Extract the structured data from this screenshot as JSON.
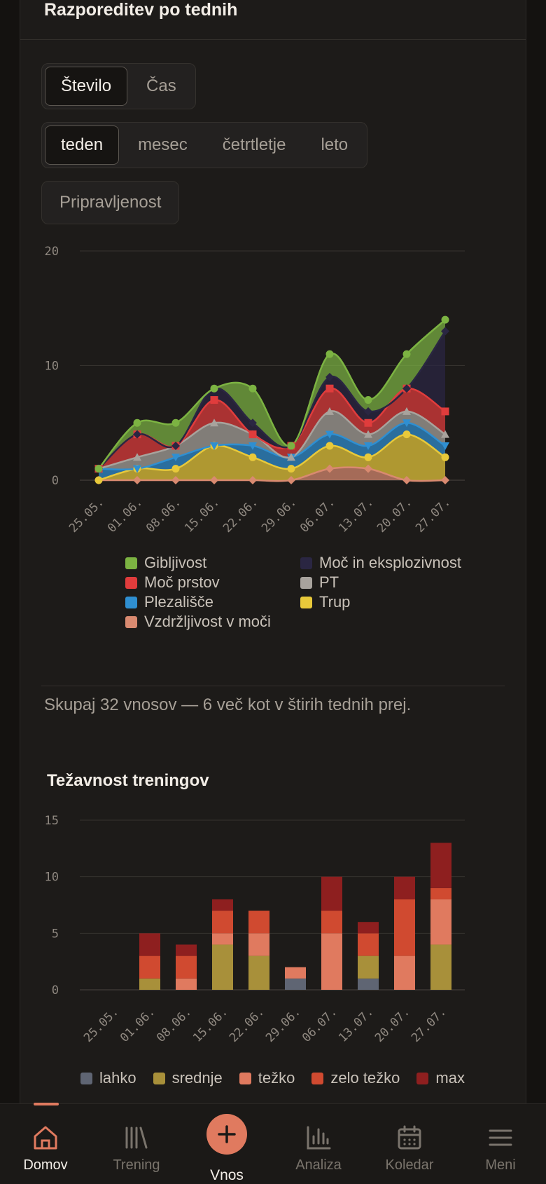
{
  "section": {
    "title": "Razporeditev po tednih",
    "metric_toggle": {
      "options": [
        "Število",
        "Čas"
      ],
      "selected": "Število"
    },
    "period_toggle": {
      "options": [
        "teden",
        "mesec",
        "četrtletje",
        "leto"
      ],
      "selected": "teden"
    },
    "readiness_button": "Pripravljenost",
    "summary": "Skupaj 32 vnosov — 6 več kot v štirih tednih prej."
  },
  "chart_data": [
    {
      "type": "area",
      "stacked": true,
      "title": "",
      "x": [
        "25.05.",
        "01.06.",
        "08.06.",
        "15.06.",
        "22.06.",
        "29.06.",
        "06.07.",
        "13.07.",
        "20.07.",
        "27.07."
      ],
      "y_ticks": [
        "0",
        "10",
        "20"
      ],
      "ylim": [
        0,
        20
      ],
      "grid": true,
      "legend_position": "bottom",
      "series": [
        {
          "name": "Vzdržljivost v moči",
          "color": "#d98a70",
          "values": [
            0,
            0,
            0,
            0,
            0,
            0,
            1,
            1,
            0,
            0
          ]
        },
        {
          "name": "Trup",
          "color": "#e8c93a",
          "values": [
            0,
            1,
            1,
            3,
            2,
            1,
            2,
            1,
            4,
            2
          ]
        },
        {
          "name": "Plezališče",
          "color": "#2f8fd1",
          "values": [
            1,
            0,
            1,
            0,
            1,
            1,
            1,
            1,
            1,
            1
          ]
        },
        {
          "name": "PT",
          "color": "#a8a39d",
          "values": [
            0,
            1,
            1,
            2,
            1,
            0,
            2,
            1,
            1,
            1
          ]
        },
        {
          "name": "Moč prstov",
          "color": "#e03c3c",
          "values": [
            0,
            2,
            0,
            2,
            0,
            1,
            2,
            1,
            2,
            2
          ]
        },
        {
          "name": "Moč in eksplozivnost",
          "color": "#2a2642",
          "values": [
            0,
            0,
            0,
            1,
            1,
            0,
            1,
            1,
            0,
            7
          ]
        },
        {
          "name": "Gibljivost",
          "color": "#7cb342",
          "values": [
            0,
            1,
            2,
            0,
            3,
            0,
            2,
            1,
            3,
            1
          ]
        }
      ],
      "legend_order": [
        "Gibljivost",
        "Moč in eksplozivnost",
        "Moč prstov",
        "PT",
        "Plezališče",
        "Trup",
        "Vzdržljivost v moči"
      ]
    },
    {
      "type": "bar",
      "stacked": true,
      "title": "Težavnost treningov",
      "categories": [
        "25.05.",
        "01.06.",
        "08.06.",
        "15.06.",
        "22.06.",
        "29.06.",
        "06.07.",
        "13.07.",
        "20.07.",
        "27.07."
      ],
      "y_ticks": [
        "0",
        "5",
        "10",
        "15"
      ],
      "ylim": [
        0,
        15
      ],
      "grid": true,
      "legend_position": "bottom",
      "series": [
        {
          "name": "lahko",
          "color": "#5f6573",
          "values": [
            0,
            0,
            0,
            0,
            0,
            1,
            0,
            1,
            0,
            0
          ]
        },
        {
          "name": "srednje",
          "color": "#a8903a",
          "values": [
            0,
            1,
            0,
            4,
            3,
            0,
            0,
            2,
            0,
            4
          ]
        },
        {
          "name": "težko",
          "color": "#e07a5f",
          "values": [
            0,
            0,
            1,
            1,
            2,
            1,
            5,
            0,
            3,
            4
          ]
        },
        {
          "name": "zelo težko",
          "color": "#d04a30",
          "values": [
            0,
            2,
            2,
            2,
            2,
            0,
            2,
            2,
            5,
            1
          ]
        },
        {
          "name": "max",
          "color": "#8e1f1f",
          "values": [
            0,
            2,
            1,
            1,
            0,
            0,
            3,
            1,
            2,
            4
          ]
        }
      ]
    }
  ],
  "nav": {
    "items": [
      {
        "label": "Domov",
        "icon": "home-icon",
        "active": true
      },
      {
        "label": "Trening",
        "icon": "library-icon",
        "active": false
      },
      {
        "label": "Vnos",
        "icon": "plus-icon",
        "active": false
      },
      {
        "label": "Analiza",
        "icon": "bar-chart-icon",
        "active": false
      },
      {
        "label": "Koledar",
        "icon": "calendar-icon",
        "active": false
      },
      {
        "label": "Meni",
        "icon": "menu-icon",
        "active": false
      }
    ],
    "accent": "#e07a5f"
  }
}
